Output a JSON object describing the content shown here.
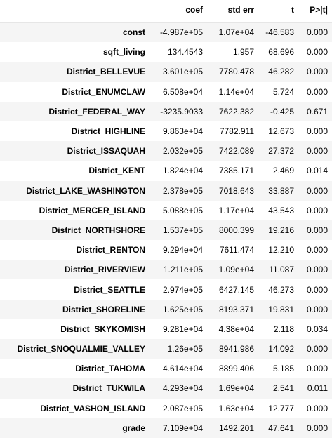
{
  "table": {
    "headers": {
      "index": "",
      "coef": "coef",
      "std_err": "std err",
      "t": "t",
      "p": "P>|t|"
    },
    "rows": [
      {
        "name": "const",
        "coef": "-4.987e+05",
        "std_err": "1.07e+04",
        "t": "-46.583",
        "p": "0.000"
      },
      {
        "name": "sqft_living",
        "coef": "134.4543",
        "std_err": "1.957",
        "t": "68.696",
        "p": "0.000"
      },
      {
        "name": "District_BELLEVUE",
        "coef": "3.601e+05",
        "std_err": "7780.478",
        "t": "46.282",
        "p": "0.000"
      },
      {
        "name": "District_ENUMCLAW",
        "coef": "6.508e+04",
        "std_err": "1.14e+04",
        "t": "5.724",
        "p": "0.000"
      },
      {
        "name": "District_FEDERAL_WAY",
        "coef": "-3235.9033",
        "std_err": "7622.382",
        "t": "-0.425",
        "p": "0.671"
      },
      {
        "name": "District_HIGHLINE",
        "coef": "9.863e+04",
        "std_err": "7782.911",
        "t": "12.673",
        "p": "0.000"
      },
      {
        "name": "District_ISSAQUAH",
        "coef": "2.032e+05",
        "std_err": "7422.089",
        "t": "27.372",
        "p": "0.000"
      },
      {
        "name": "District_KENT",
        "coef": "1.824e+04",
        "std_err": "7385.171",
        "t": "2.469",
        "p": "0.014"
      },
      {
        "name": "District_LAKE_WASHINGTON",
        "coef": "2.378e+05",
        "std_err": "7018.643",
        "t": "33.887",
        "p": "0.000"
      },
      {
        "name": "District_MERCER_ISLAND",
        "coef": "5.088e+05",
        "std_err": "1.17e+04",
        "t": "43.543",
        "p": "0.000"
      },
      {
        "name": "District_NORTHSHORE",
        "coef": "1.537e+05",
        "std_err": "8000.399",
        "t": "19.216",
        "p": "0.000"
      },
      {
        "name": "District_RENTON",
        "coef": "9.294e+04",
        "std_err": "7611.474",
        "t": "12.210",
        "p": "0.000"
      },
      {
        "name": "District_RIVERVIEW",
        "coef": "1.211e+05",
        "std_err": "1.09e+04",
        "t": "11.087",
        "p": "0.000"
      },
      {
        "name": "District_SEATTLE",
        "coef": "2.974e+05",
        "std_err": "6427.145",
        "t": "46.273",
        "p": "0.000"
      },
      {
        "name": "District_SHORELINE",
        "coef": "1.625e+05",
        "std_err": "8193.371",
        "t": "19.831",
        "p": "0.000"
      },
      {
        "name": "District_SKYKOMISH",
        "coef": "9.281e+04",
        "std_err": "4.38e+04",
        "t": "2.118",
        "p": "0.034"
      },
      {
        "name": "District_SNOQUALMIE_VALLEY",
        "coef": "1.26e+05",
        "std_err": "8941.986",
        "t": "14.092",
        "p": "0.000"
      },
      {
        "name": "District_TAHOMA",
        "coef": "4.614e+04",
        "std_err": "8899.406",
        "t": "5.185",
        "p": "0.000"
      },
      {
        "name": "District_TUKWILA",
        "coef": "4.293e+04",
        "std_err": "1.69e+04",
        "t": "2.541",
        "p": "0.011"
      },
      {
        "name": "District_VASHON_ISLAND",
        "coef": "2.087e+05",
        "std_err": "1.63e+04",
        "t": "12.777",
        "p": "0.000"
      },
      {
        "name": "grade",
        "coef": "7.109e+04",
        "std_err": "1492.201",
        "t": "47.641",
        "p": "0.000"
      }
    ]
  },
  "colors": {
    "stripe": "#f5f5f5",
    "background": "#ffffff",
    "header_rule": "#e6e6e6"
  }
}
